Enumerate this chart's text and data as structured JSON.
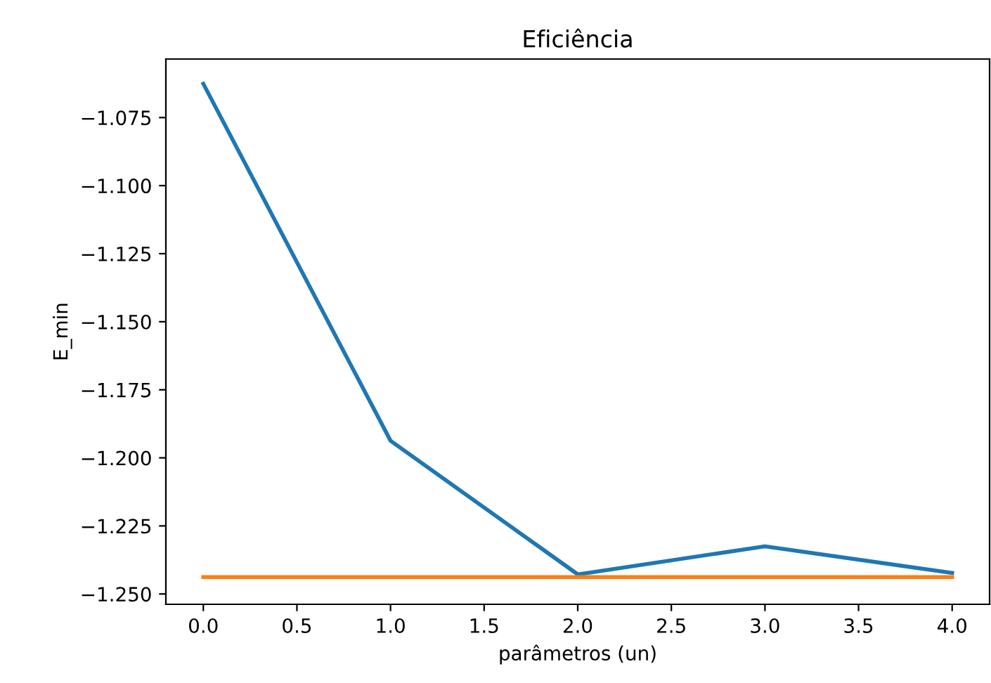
{
  "chart_data": {
    "type": "line",
    "title": "Eficiência",
    "xlabel": "parâmetros (un)",
    "ylabel": "E_min",
    "x": [
      0,
      1,
      2,
      3,
      4
    ],
    "series": [
      {
        "color": "#1f77b4",
        "values": [
          -1.0626,
          -1.1937,
          -1.2428,
          -1.2325,
          -1.2423
        ]
      },
      {
        "color": "#ff7f0e",
        "values": [
          -1.2438,
          -1.2438,
          -1.2438,
          -1.2438,
          -1.2438
        ]
      }
    ],
    "xlim": [
      -0.2,
      4.2
    ],
    "ylim": [
      -1.2538,
      -1.0535
    ],
    "xticks": [
      {
        "value": 0,
        "label": "0.0"
      },
      {
        "value": 0.5,
        "label": "0.5"
      },
      {
        "value": 1,
        "label": "1.0"
      },
      {
        "value": 1.5,
        "label": "1.5"
      },
      {
        "value": 2,
        "label": "2.0"
      },
      {
        "value": 2.5,
        "label": "2.5"
      },
      {
        "value": 3,
        "label": "3.0"
      },
      {
        "value": 3.5,
        "label": "3.5"
      },
      {
        "value": 4,
        "label": "4.0"
      }
    ],
    "yticks": [
      {
        "value": -1.075,
        "label": "−1.075"
      },
      {
        "value": -1.1,
        "label": "−1.100"
      },
      {
        "value": -1.125,
        "label": "−1.125"
      },
      {
        "value": -1.15,
        "label": "−1.150"
      },
      {
        "value": -1.175,
        "label": "−1.175"
      },
      {
        "value": -1.2,
        "label": "−1.200"
      },
      {
        "value": -1.225,
        "label": "−1.225"
      },
      {
        "value": -1.25,
        "label": "−1.250"
      }
    ],
    "grid": false
  }
}
